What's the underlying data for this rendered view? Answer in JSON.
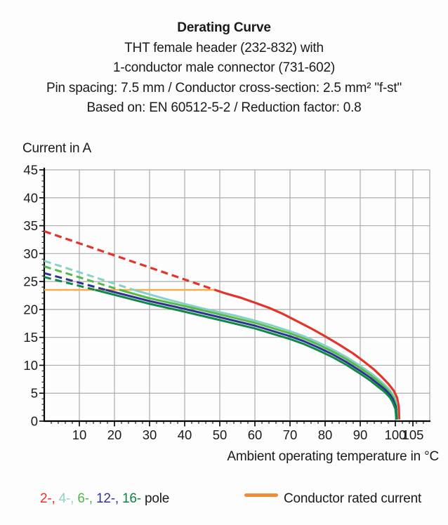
{
  "header": {
    "title": "Derating Curve",
    "subtitle_lines": [
      "THT female header (232-832) with",
      "1-conductor male connector (731-602)",
      "Pin spacing: 7.5 mm / Conductor cross-section: 2.5 mm² \"f-st\"",
      "Based on: EN 60512-5-2 / Reduction factor: 0.8"
    ]
  },
  "legend": {
    "poles": [
      {
        "label": "2-",
        "color": "#E5332A"
      },
      {
        "label": "4-",
        "color": "#8DD1C9"
      },
      {
        "label": "6-",
        "color": "#4FB748"
      },
      {
        "label": "12-",
        "color": "#2E3390"
      },
      {
        "label": "16-",
        "color": "#0D8045"
      }
    ],
    "separator": ", ",
    "pole_suffix": " pole",
    "rated": {
      "label": "Conductor rated current",
      "swatch_color": "#EE8D35"
    }
  },
  "chart_data": {
    "type": "line",
    "title": "Derating Curve",
    "ylabel": "Current in A",
    "xlabel": "Ambient operating temperature in °C",
    "xlim": [
      0,
      110
    ],
    "ylim": [
      0,
      45
    ],
    "x_ticks": [
      10,
      20,
      30,
      40,
      50,
      60,
      70,
      80,
      90,
      100,
      105
    ],
    "y_ticks": [
      0,
      5,
      10,
      15,
      20,
      25,
      30,
      35,
      40,
      45
    ],
    "x_minor_step": 2,
    "y_minor_step": 1,
    "grid": true,
    "colors": {
      "grid": "#ABABAB",
      "axis": "#000000",
      "text": "#1a1a1a"
    },
    "rated_current_A": 23.5,
    "series": [
      {
        "name": "conductor-rated-current",
        "color": "#F6AD4B",
        "width": 2.4,
        "solid": [
          [
            0,
            23.5
          ],
          [
            48.6,
            23.5
          ]
        ]
      },
      {
        "name": "2-pole",
        "color": "#E5332A",
        "width": 3.2,
        "dashed": [
          [
            0,
            34
          ],
          [
            48.6,
            23.5
          ]
        ],
        "solid": [
          [
            48.6,
            23.5
          ],
          [
            52,
            22.8
          ],
          [
            56,
            22.1
          ],
          [
            60,
            21.2
          ],
          [
            64,
            20.3
          ],
          [
            68,
            19.2
          ],
          [
            72,
            17.9
          ],
          [
            76,
            16.6
          ],
          [
            80,
            15.2
          ],
          [
            84,
            13.7
          ],
          [
            88,
            12.1
          ],
          [
            91,
            10.7
          ],
          [
            94,
            9.2
          ],
          [
            96,
            8.0
          ],
          [
            98,
            6.7
          ],
          [
            99.5,
            5.5
          ],
          [
            100.5,
            4.2
          ],
          [
            101,
            2.5
          ],
          [
            101.1,
            0.3
          ]
        ]
      },
      {
        "name": "4-pole",
        "color": "#87CFC7",
        "width": 3,
        "dashed": [
          [
            0,
            28.7
          ],
          [
            25.5,
            23.5
          ]
        ],
        "solid": [
          [
            25.5,
            23.5
          ],
          [
            30,
            22.7
          ],
          [
            35,
            21.8
          ],
          [
            40,
            21.0
          ],
          [
            45,
            20.2
          ],
          [
            50,
            19.5
          ],
          [
            55,
            18.8
          ],
          [
            60,
            18.0
          ],
          [
            65,
            17.1
          ],
          [
            70,
            16.1
          ],
          [
            74,
            15.2
          ],
          [
            78,
            14.1
          ],
          [
            82,
            12.9
          ],
          [
            86,
            11.5
          ],
          [
            90,
            9.9
          ],
          [
            93,
            8.6
          ],
          [
            95,
            7.6
          ],
          [
            97,
            6.5
          ],
          [
            98.5,
            5.5
          ],
          [
            99.6,
            4.4
          ],
          [
            100.3,
            3.2
          ],
          [
            100.6,
            0.3
          ]
        ]
      },
      {
        "name": "6-pole",
        "color": "#55B94B",
        "width": 3,
        "dashed": [
          [
            0,
            27.7
          ],
          [
            21.5,
            23.5
          ]
        ],
        "solid": [
          [
            21.5,
            23.5
          ],
          [
            30,
            22.0
          ],
          [
            40,
            20.6
          ],
          [
            50,
            19.1
          ],
          [
            60,
            17.6
          ],
          [
            70,
            15.7
          ],
          [
            74,
            14.8
          ],
          [
            78,
            13.7
          ],
          [
            82,
            12.5
          ],
          [
            86,
            11.1
          ],
          [
            90,
            9.5
          ],
          [
            93,
            8.2
          ],
          [
            95,
            7.2
          ],
          [
            97,
            6.1
          ],
          [
            98.5,
            5.1
          ],
          [
            99.5,
            4.1
          ],
          [
            100.2,
            2.9
          ],
          [
            100.5,
            0.3
          ]
        ]
      },
      {
        "name": "12-pole",
        "color": "#2E3390",
        "width": 3,
        "dashed": [
          [
            0,
            26.5
          ],
          [
            17.5,
            23.5
          ]
        ],
        "solid": [
          [
            17.5,
            23.5
          ],
          [
            30,
            21.5
          ],
          [
            40,
            20.1
          ],
          [
            50,
            18.6
          ],
          [
            60,
            17.1
          ],
          [
            70,
            15.2
          ],
          [
            74,
            14.3
          ],
          [
            78,
            13.2
          ],
          [
            82,
            12.0
          ],
          [
            86,
            10.6
          ],
          [
            90,
            9.0
          ],
          [
            93,
            7.7
          ],
          [
            95,
            6.7
          ],
          [
            97,
            5.7
          ],
          [
            98.5,
            4.7
          ],
          [
            99.4,
            3.8
          ],
          [
            100.1,
            2.6
          ],
          [
            100.4,
            0.3
          ]
        ]
      },
      {
        "name": "16-pole",
        "color": "#108A47",
        "width": 3,
        "dashed": [
          [
            0,
            25.8
          ],
          [
            14.5,
            23.5
          ]
        ],
        "solid": [
          [
            14.5,
            23.5
          ],
          [
            30,
            21.0
          ],
          [
            40,
            19.6
          ],
          [
            50,
            18.1
          ],
          [
            60,
            16.6
          ],
          [
            70,
            14.7
          ],
          [
            74,
            13.8
          ],
          [
            78,
            12.7
          ],
          [
            82,
            11.5
          ],
          [
            86,
            10.1
          ],
          [
            90,
            8.5
          ],
          [
            93,
            7.2
          ],
          [
            95,
            6.2
          ],
          [
            97,
            5.2
          ],
          [
            98.5,
            4.2
          ],
          [
            99.3,
            3.3
          ],
          [
            100,
            2.2
          ],
          [
            100.3,
            0.3
          ]
        ]
      }
    ]
  }
}
